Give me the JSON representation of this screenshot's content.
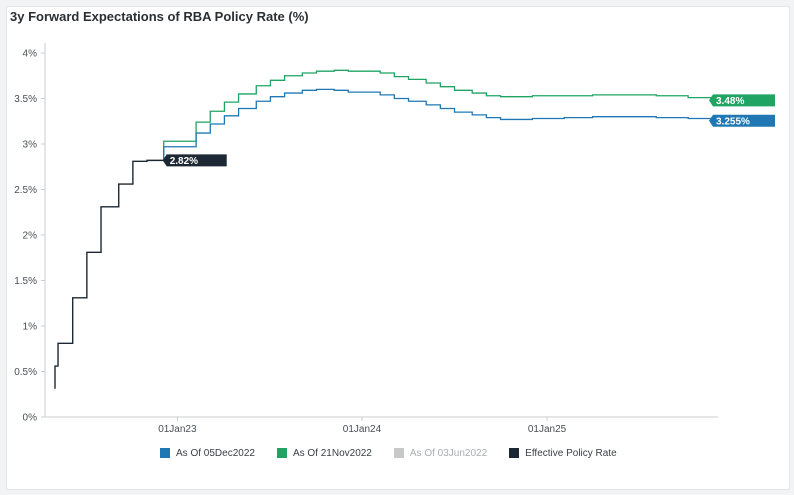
{
  "page": {
    "title": "3y Forward Expectations of RBA Policy Rate (%)"
  },
  "colors": {
    "dec": "#1f78b4",
    "nov": "#1fa463",
    "jun": "#c8c8c8",
    "effective": "#1c2833"
  },
  "chart_data": {
    "type": "line",
    "title": "3y Forward Expectations of RBA Policy Rate (%)",
    "ylim": [
      0,
      4
    ],
    "y_ticks": [
      "0%",
      "0.5%",
      "1%",
      "1.5%",
      "2%",
      "2.5%",
      "3%",
      "3.5%",
      "4%"
    ],
    "x_ticks": [
      "01Jan23",
      "01Jan24",
      "01Jan25"
    ],
    "x_tick_dates": [
      "2023-01-01",
      "2024-01-01",
      "2025-01-01"
    ],
    "xlim": [
      "2022-05-04",
      "2025-12-05"
    ],
    "grid": false,
    "legend": "bottom",
    "series": [
      {
        "name": "As Of 05Dec2022",
        "key": "dec",
        "step": true,
        "end_label": "3.255%",
        "points": [
          [
            "2022-12-05",
            2.82
          ],
          [
            "2022-12-05",
            2.97
          ],
          [
            "2023-02-07",
            3.12
          ],
          [
            "2023-03-07",
            3.22
          ],
          [
            "2023-04-04",
            3.31
          ],
          [
            "2023-05-02",
            3.39
          ],
          [
            "2023-06-06",
            3.47
          ],
          [
            "2023-07-04",
            3.52
          ],
          [
            "2023-08-01",
            3.56
          ],
          [
            "2023-09-05",
            3.59
          ],
          [
            "2023-10-03",
            3.6
          ],
          [
            "2023-11-07",
            3.59
          ],
          [
            "2023-12-05",
            3.57
          ],
          [
            "2024-02-06",
            3.54
          ],
          [
            "2024-03-05",
            3.5
          ],
          [
            "2024-04-02",
            3.47
          ],
          [
            "2024-05-07",
            3.43
          ],
          [
            "2024-06-04",
            3.39
          ],
          [
            "2024-07-02",
            3.35
          ],
          [
            "2024-08-06",
            3.32
          ],
          [
            "2024-09-03",
            3.29
          ],
          [
            "2024-10-01",
            3.27
          ],
          [
            "2024-11-05",
            3.27
          ],
          [
            "2024-12-03",
            3.28
          ],
          [
            "2025-02-04",
            3.29
          ],
          [
            "2025-04-01",
            3.3
          ],
          [
            "2025-06-03",
            3.3
          ],
          [
            "2025-08-05",
            3.29
          ],
          [
            "2025-10-07",
            3.28
          ],
          [
            "2025-12-05",
            3.255
          ]
        ]
      },
      {
        "name": "As Of 21Nov2022",
        "key": "nov",
        "step": true,
        "end_label": "3.48%",
        "points": [
          [
            "2022-12-05",
            2.82
          ],
          [
            "2022-12-05",
            3.03
          ],
          [
            "2023-02-07",
            3.24
          ],
          [
            "2023-03-07",
            3.36
          ],
          [
            "2023-04-04",
            3.46
          ],
          [
            "2023-05-02",
            3.55
          ],
          [
            "2023-06-06",
            3.64
          ],
          [
            "2023-07-04",
            3.7
          ],
          [
            "2023-08-01",
            3.75
          ],
          [
            "2023-09-05",
            3.78
          ],
          [
            "2023-10-03",
            3.8
          ],
          [
            "2023-11-07",
            3.81
          ],
          [
            "2023-12-05",
            3.8
          ],
          [
            "2024-02-06",
            3.78
          ],
          [
            "2024-03-05",
            3.74
          ],
          [
            "2024-04-02",
            3.71
          ],
          [
            "2024-05-07",
            3.67
          ],
          [
            "2024-06-04",
            3.63
          ],
          [
            "2024-07-02",
            3.59
          ],
          [
            "2024-08-06",
            3.56
          ],
          [
            "2024-09-03",
            3.53
          ],
          [
            "2024-10-01",
            3.52
          ],
          [
            "2024-11-05",
            3.52
          ],
          [
            "2024-12-03",
            3.53
          ],
          [
            "2025-02-04",
            3.53
          ],
          [
            "2025-04-01",
            3.54
          ],
          [
            "2025-06-03",
            3.54
          ],
          [
            "2025-08-05",
            3.53
          ],
          [
            "2025-10-07",
            3.51
          ],
          [
            "2025-12-05",
            3.48
          ]
        ]
      },
      {
        "name": "As Of 03Jun2022",
        "key": "jun",
        "step": true,
        "hidden": true,
        "points": []
      },
      {
        "name": "Effective Policy Rate",
        "key": "effective",
        "step": true,
        "end_label": "2.82%",
        "points": [
          [
            "2022-05-04",
            0.31
          ],
          [
            "2022-05-04",
            0.56
          ],
          [
            "2022-05-10",
            0.81
          ],
          [
            "2022-06-08",
            1.31
          ],
          [
            "2022-07-06",
            1.81
          ],
          [
            "2022-08-03",
            2.31
          ],
          [
            "2022-09-07",
            2.56
          ],
          [
            "2022-10-05",
            2.81
          ],
          [
            "2022-11-02",
            2.82
          ],
          [
            "2022-12-05",
            2.82
          ]
        ]
      }
    ]
  }
}
